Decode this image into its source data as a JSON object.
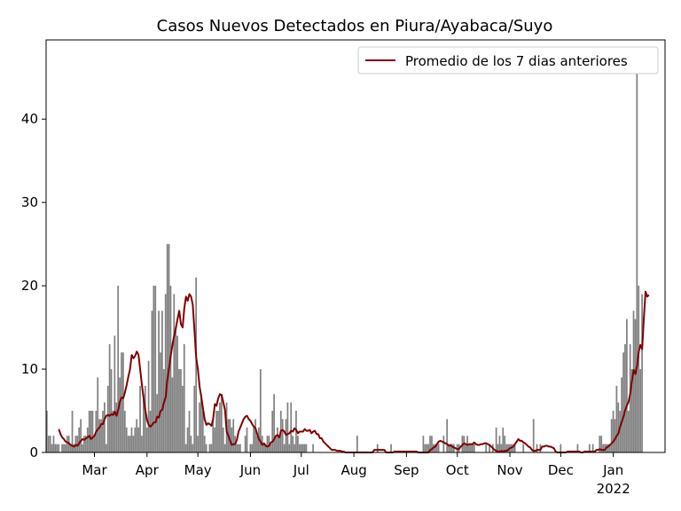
{
  "chart_data": {
    "type": "bar",
    "title": "Casos Nuevos Detectados en Piura/Ayabaca/Suyo",
    "xlabel": "",
    "ylabel": "",
    "x_start_date": "2021-02-01",
    "x_end_date": "2022-01-31",
    "ylim": [
      0,
      49.5
    ],
    "yticks": [
      0,
      10,
      20,
      30,
      40
    ],
    "xticks": [
      {
        "date": "2021-03-01",
        "label": "Mar"
      },
      {
        "date": "2021-04-01",
        "label": "Apr"
      },
      {
        "date": "2021-05-01",
        "label": "May"
      },
      {
        "date": "2021-06-01",
        "label": "Jun"
      },
      {
        "date": "2021-07-01",
        "label": "Jul"
      },
      {
        "date": "2021-08-01",
        "label": "Aug"
      },
      {
        "date": "2021-09-01",
        "label": "Sep"
      },
      {
        "date": "2021-10-01",
        "label": "Oct"
      },
      {
        "date": "2021-11-01",
        "label": "Nov"
      },
      {
        "date": "2021-12-01",
        "label": "Dec"
      },
      {
        "date": "2022-01-01",
        "label": "Jan\n2022"
      }
    ],
    "grid": false,
    "legend_position": "upper right",
    "series": [
      {
        "name": "",
        "type": "bar",
        "color": "#808080",
        "values": [
          5,
          2,
          2,
          1,
          2,
          1,
          1,
          1,
          0,
          1,
          1,
          1,
          2,
          2,
          1,
          5,
          1,
          2,
          2,
          3,
          4,
          1,
          2,
          2,
          3,
          5,
          5,
          5,
          2,
          5,
          9,
          4,
          4,
          5,
          6,
          1,
          8,
          13,
          10,
          5,
          14,
          6,
          20,
          9,
          12,
          12,
          5,
          3,
          2,
          2,
          3,
          2,
          3,
          4,
          3,
          8,
          2,
          7,
          8,
          3,
          11,
          5,
          17,
          20,
          20,
          7,
          17,
          12,
          17,
          10,
          19,
          25,
          25,
          20,
          9,
          19,
          15,
          14,
          10,
          10,
          8,
          13,
          1,
          3,
          5,
          2,
          1,
          8,
          21,
          2,
          6,
          7,
          5,
          2,
          1,
          0,
          1,
          1,
          4,
          3,
          5,
          5,
          6,
          7,
          3,
          1,
          6,
          4,
          4,
          3,
          4,
          2,
          1,
          1,
          1,
          0,
          0,
          2,
          3,
          0,
          1,
          1,
          3,
          4,
          2,
          3,
          10,
          2,
          1,
          1,
          2,
          2,
          1,
          5,
          7,
          2,
          3,
          2,
          5,
          4,
          1,
          4,
          6,
          1,
          6,
          2,
          1,
          5,
          2,
          1,
          1,
          1,
          1,
          1,
          0,
          0,
          0,
          1,
          0,
          0,
          0,
          0,
          0,
          0,
          0,
          0,
          0,
          0,
          0,
          0,
          0,
          0,
          0,
          0,
          0,
          0,
          0,
          0,
          0,
          0,
          0,
          0,
          0,
          2,
          0,
          0,
          0,
          0,
          0,
          0,
          0,
          0,
          0,
          0,
          0,
          1,
          0,
          0,
          0,
          0,
          0,
          0,
          0,
          1,
          0,
          0,
          0,
          0,
          0,
          0,
          0,
          0,
          0,
          0,
          0,
          0,
          0,
          0,
          0,
          0,
          0,
          0,
          2,
          1,
          1,
          1,
          2,
          2,
          1,
          1,
          1,
          1,
          0,
          0,
          2,
          0,
          4,
          1,
          1,
          1,
          1,
          0,
          1,
          1,
          0,
          2,
          2,
          1,
          2,
          1,
          1,
          1,
          1,
          0,
          0,
          0,
          0,
          0,
          0,
          1,
          0,
          1,
          0,
          1,
          0,
          3,
          1,
          2,
          1,
          3,
          2,
          1,
          1,
          1,
          1,
          1,
          1,
          0,
          0,
          0,
          0,
          1,
          0,
          0,
          0,
          0,
          0,
          4,
          0,
          1,
          0,
          1,
          0,
          0,
          0,
          0,
          0,
          0,
          0,
          0,
          0,
          0,
          0,
          1,
          0,
          0,
          0,
          0,
          0,
          0,
          0,
          0,
          0,
          1,
          0,
          0,
          0,
          0,
          0,
          0,
          1,
          0,
          1,
          0,
          0,
          0,
          2,
          2,
          1,
          1,
          1,
          1,
          1,
          4,
          5,
          4,
          8,
          6,
          5,
          9,
          12,
          13,
          16,
          5,
          13,
          10,
          17,
          16,
          47,
          20,
          10,
          19
        ]
      },
      {
        "name": "Promedio de los 7 dias anteriores",
        "type": "line",
        "color": "#800000",
        "values": [
          2.8,
          2.2,
          1.8,
          1.6,
          1.3,
          1.2,
          1.1,
          0.9,
          0.8,
          0.7,
          0.9,
          0.8,
          1.1,
          1.4,
          1.6,
          1.5,
          1.7,
          1.8,
          2.0,
          1.6,
          1.8,
          2.0,
          2.5,
          2.8,
          3.0,
          3.4,
          3.4,
          4.0,
          4.4,
          4.5,
          4.4,
          4.6,
          4.5,
          4.9,
          4.4,
          5.1,
          6.1,
          6.6,
          6.5,
          7.2,
          8.1,
          9.1,
          10.0,
          11.7,
          11.3,
          11.6,
          12.1,
          11.7,
          9.9,
          8.1,
          6.5,
          5.1,
          3.9,
          3.3,
          3.1,
          3.3,
          3.6,
          3.6,
          4.3,
          4.2,
          5.0,
          5.1,
          6.0,
          6.6,
          8.7,
          10.1,
          11.6,
          12.9,
          14.0,
          14.9,
          16.0,
          17.0,
          15.4,
          15.0,
          17.3,
          18.7,
          18.2,
          19.0,
          18.7,
          17.7,
          14.6,
          11.4,
          10.0,
          7.9,
          6.7,
          5.3,
          4.0,
          3.3,
          3.5,
          3.4,
          3.2,
          4.0,
          5.8,
          5.6,
          6.5,
          7.0,
          6.9,
          6.0,
          5.1,
          2.5,
          2.0,
          1.4,
          0.9,
          1.0,
          1.0,
          1.5,
          2.5,
          3.0,
          3.5,
          4.0,
          4.3,
          4.4,
          4.0,
          3.8,
          3.4,
          3.1,
          2.9,
          2.2,
          1.6,
          1.3,
          0.9,
          1.1,
          0.8,
          0.7,
          0.8,
          1.2,
          1.3,
          1.6,
          2.0,
          2.1,
          1.8,
          2.6,
          2.7,
          2.5,
          2.1,
          2.2,
          2.3,
          2.6,
          2.5,
          2.9,
          2.7,
          2.3,
          2.5,
          2.5,
          2.5,
          2.8,
          2.6,
          2.6,
          2.7,
          2.3,
          2.5,
          2.6,
          2.2,
          2.2,
          1.7,
          1.7,
          1.3,
          1.1,
          0.9,
          0.7,
          0.5,
          0.3,
          0.3,
          0.3,
          0.2,
          0.2,
          0.2,
          0.1,
          0.1,
          0.0,
          0.0,
          0.0,
          0.0,
          0.0,
          0.0,
          0.0,
          0.0,
          0.0,
          0.0,
          0.0,
          0.0,
          0.0,
          0.0,
          0.0,
          0.0,
          0.0,
          0.3,
          0.3,
          0.3,
          0.3,
          0.3,
          0.3,
          0.3,
          0.0,
          0.0,
          0.0,
          0.0,
          0.0,
          0.1,
          0.1,
          0.1,
          0.1,
          0.1,
          0.1,
          0.1,
          0.1,
          0.1,
          0.1,
          0.1,
          0.1,
          0.1,
          0.1,
          0.0,
          0.0,
          0.0,
          0.0,
          0.0,
          0.0,
          0.0,
          0.3,
          0.4,
          0.6,
          0.7,
          1.0,
          1.3,
          1.4,
          1.3,
          1.2,
          1.1,
          1.0,
          0.8,
          0.9,
          0.7,
          0.6,
          0.5,
          0.4,
          0.4,
          0.7,
          0.9,
          1.1,
          1.0,
          0.9,
          1.0,
          1.0,
          1.0,
          1.2,
          1.0,
          0.9,
          0.9,
          1.0,
          1.0,
          1.1,
          1.1,
          1.0,
          0.9,
          0.7,
          0.5,
          0.3,
          0.2,
          0.1,
          0.1,
          0.2,
          0.1,
          0.2,
          0.2,
          0.3,
          0.5,
          0.6,
          0.7,
          1.0,
          1.3,
          1.6,
          1.4,
          1.4,
          1.2,
          1.1,
          0.9,
          0.7,
          0.6,
          0.3,
          0.2,
          0.2,
          0.3,
          0.3,
          0.3,
          0.7,
          0.7,
          0.8,
          0.8,
          0.7,
          0.7,
          0.6,
          0.5,
          0.1,
          0.0,
          0.0,
          0.0,
          0.0,
          0.0,
          0.0,
          0.1,
          0.1,
          0.1,
          0.1,
          0.1,
          0.1,
          0.1,
          0.1,
          0.0,
          0.0,
          0.1,
          0.1,
          0.1,
          0.1,
          0.1,
          0.1,
          0.1,
          0.3,
          0.3,
          0.4,
          0.3,
          0.3,
          0.3,
          0.6,
          0.7,
          0.9,
          1.1,
          1.3,
          1.6,
          2.0,
          2.3,
          3.1,
          3.7,
          4.3,
          5.1,
          5.6,
          6.1,
          7.1,
          8.6,
          9.9,
          9.4,
          10.4,
          12.1,
          12.9,
          12.4,
          16.1,
          19.3,
          18.7,
          18.9
        ]
      }
    ]
  }
}
